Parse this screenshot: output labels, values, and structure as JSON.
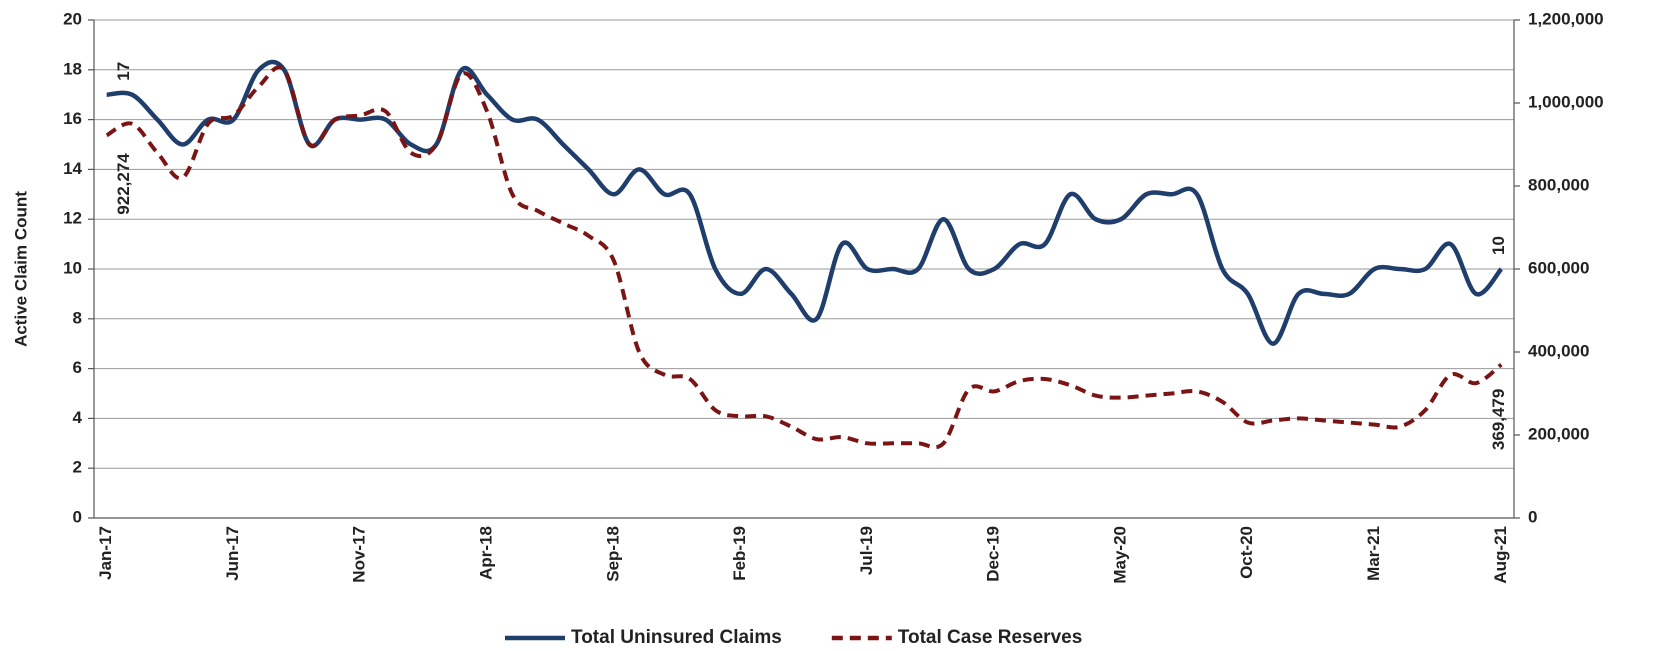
{
  "chart_data": {
    "type": "line",
    "y_label": "Active Claim Count",
    "categories": [
      "Jan-17",
      null,
      null,
      null,
      null,
      "Jun-17",
      null,
      null,
      null,
      null,
      "Nov-17",
      null,
      null,
      null,
      null,
      "Apr-18",
      null,
      null,
      null,
      null,
      "Sep-18",
      null,
      null,
      null,
      null,
      "Feb-19",
      null,
      null,
      null,
      null,
      "Jul-19",
      null,
      null,
      null,
      null,
      "Dec-19",
      null,
      null,
      null,
      null,
      "May-20",
      null,
      null,
      null,
      null,
      "Oct-20",
      null,
      null,
      null,
      null,
      "Mar-21",
      null,
      null,
      null,
      null,
      "Aug-21"
    ],
    "series": [
      {
        "name": "Total Uninsured Claims",
        "color": "#203e6b",
        "dash": false,
        "values": [
          17,
          17,
          16,
          15,
          16,
          16,
          18,
          18,
          15,
          16,
          16,
          16,
          15,
          15,
          18,
          17,
          16,
          16,
          15,
          14,
          13,
          14,
          13,
          13,
          10,
          9,
          10,
          9,
          8,
          11,
          10,
          10,
          10,
          12,
          10,
          10,
          11,
          11,
          13,
          12,
          12,
          13,
          13,
          13,
          10,
          9,
          7,
          9,
          9,
          9,
          10,
          10,
          10,
          11,
          9,
          10
        ],
        "value_labels": [
          "17",
          null,
          null,
          null,
          null,
          null,
          null,
          null,
          null,
          null,
          null,
          null,
          null,
          null,
          null,
          null,
          null,
          null,
          null,
          null,
          null,
          null,
          null,
          null,
          null,
          null,
          null,
          null,
          null,
          null,
          null,
          null,
          null,
          null,
          null,
          null,
          null,
          null,
          null,
          null,
          null,
          null,
          null,
          null,
          null,
          null,
          null,
          null,
          null,
          null,
          null,
          null,
          null,
          null,
          null,
          "10"
        ]
      },
      {
        "name": "Total Case Reserves",
        "color": "#7b1414",
        "dash": true,
        "axis": "y2",
        "values": [
          922274,
          950000,
          880000,
          820000,
          950000,
          970000,
          1040000,
          1080000,
          900000,
          960000,
          970000,
          980000,
          880000,
          900000,
          1070000,
          980000,
          780000,
          740000,
          710000,
          680000,
          620000,
          400000,
          345000,
          335000,
          260000,
          245000,
          245000,
          220000,
          190000,
          195000,
          180000,
          180000,
          180000,
          180000,
          310000,
          305000,
          330000,
          335000,
          320000,
          295000,
          290000,
          295000,
          300000,
          305000,
          280000,
          230000,
          235000,
          240000,
          235000,
          230000,
          225000,
          220000,
          260000,
          345000,
          325000,
          369479
        ],
        "value_labels": [
          "922,274",
          null,
          null,
          null,
          null,
          null,
          null,
          null,
          null,
          null,
          null,
          null,
          null,
          null,
          null,
          null,
          null,
          null,
          null,
          null,
          null,
          null,
          null,
          null,
          null,
          null,
          null,
          null,
          null,
          null,
          null,
          null,
          null,
          null,
          null,
          null,
          null,
          null,
          null,
          null,
          null,
          null,
          null,
          null,
          null,
          null,
          null,
          null,
          null,
          null,
          null,
          null,
          null,
          null,
          null,
          "369,479"
        ]
      }
    ],
    "ylim": [
      0,
      20
    ],
    "yticks": [
      0,
      2,
      4,
      6,
      8,
      10,
      12,
      14,
      16,
      18,
      20
    ],
    "y2lim": [
      0,
      1200000
    ],
    "y2ticks": [
      0,
      {
        "value": 200000,
        "label": "200,000"
      },
      {
        "value": 400000,
        "label": "400,000"
      },
      {
        "value": 600000,
        "label": "600,000"
      },
      {
        "value": 800000,
        "label": "800,000"
      },
      {
        "value": 1000000,
        "label": "1,000,000"
      },
      {
        "value": 1200000,
        "label": "1,200,000"
      }
    ],
    "grid": true,
    "legend": "bottom"
  }
}
